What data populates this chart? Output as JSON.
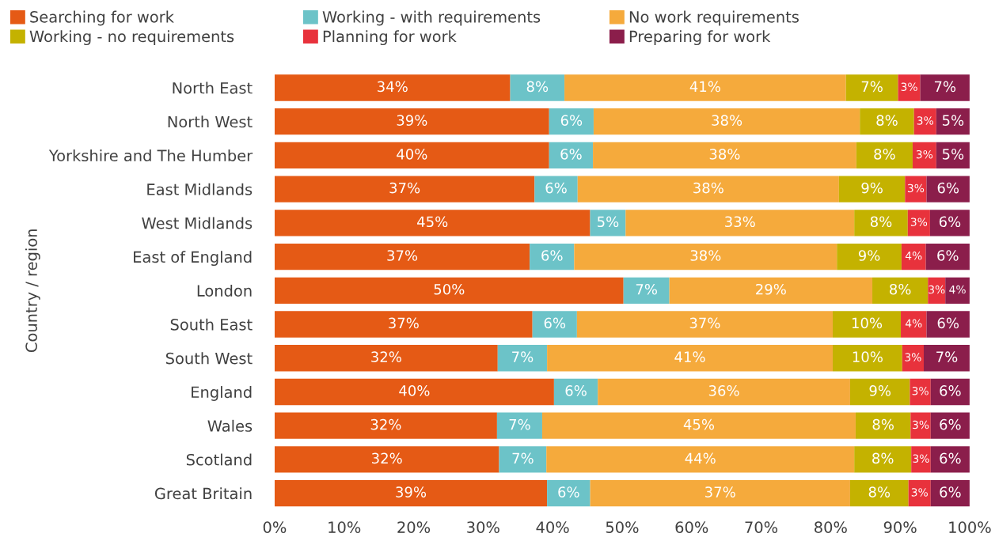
{
  "chart_data": {
    "type": "bar",
    "orientation": "horizontal",
    "stacked": true,
    "ylabel": "Country / region",
    "categories": [
      "North East",
      "North West",
      "Yorkshire and The Humber",
      "East Midlands",
      "West Midlands",
      "East of England",
      "London",
      "South East",
      "South West",
      "England",
      "Wales",
      "Scotland",
      "Great Britain"
    ],
    "series": [
      {
        "name": "Searching for work",
        "color": "#e55a15",
        "values": [
          33.9,
          39.5,
          39.5,
          37.4,
          45.4,
          36.7,
          50.2,
          37.1,
          32.1,
          40.2,
          32.0,
          32.3,
          39.2
        ],
        "value_labels": [
          "34%",
          "39%",
          "40%",
          "37%",
          "45%",
          "37%",
          "50%",
          "37%",
          "32%",
          "40%",
          "32%",
          "32%",
          "39%"
        ]
      },
      {
        "name": "Working - with requirements",
        "color": "#6cc3c8",
        "values": [
          7.8,
          6.4,
          6.3,
          6.2,
          5.1,
          6.4,
          6.6,
          6.4,
          7.1,
          6.3,
          6.5,
          6.8,
          6.2
        ],
        "value_labels": [
          "8%",
          "6%",
          "6%",
          "6%",
          "5%",
          "6%",
          "7%",
          "6%",
          "7%",
          "6%",
          "7%",
          "7%",
          "6%"
        ]
      },
      {
        "name": "No work requirements",
        "color": "#f5aa3c",
        "values": [
          40.5,
          38.3,
          37.9,
          37.6,
          32.9,
          37.8,
          29.2,
          36.8,
          41.1,
          36.3,
          45.1,
          44.3,
          37.4
        ],
        "value_labels": [
          "41%",
          "38%",
          "38%",
          "38%",
          "33%",
          "38%",
          "29%",
          "37%",
          "41%",
          "36%",
          "45%",
          "44%",
          "37%"
        ]
      },
      {
        "name": "Working - no requirements",
        "color": "#c4b200",
        "values": [
          7.5,
          7.8,
          8.1,
          9.5,
          7.7,
          9.3,
          8.0,
          9.8,
          10.0,
          8.6,
          7.9,
          8.2,
          8.4
        ],
        "value_labels": [
          "7%",
          "8%",
          "8%",
          "9%",
          "8%",
          "9%",
          "8%",
          "10%",
          "10%",
          "9%",
          "8%",
          "8%",
          "8%"
        ]
      },
      {
        "name": "Planning for work",
        "color": "#e8323c",
        "values": [
          3.2,
          3.2,
          3.4,
          3.1,
          3.2,
          3.5,
          2.5,
          3.7,
          3.1,
          3.0,
          2.9,
          2.8,
          3.2
        ],
        "value_labels": [
          "3%",
          "3%",
          "3%",
          "3%",
          "3%",
          "4%",
          "3%",
          "4%",
          "3%",
          "3%",
          "3%",
          "3%",
          "3%"
        ]
      },
      {
        "name": "Preparing for work",
        "color": "#8b1e4b",
        "values": [
          7.1,
          4.8,
          4.8,
          6.2,
          5.7,
          6.3,
          3.5,
          6.2,
          6.6,
          5.6,
          5.6,
          5.6,
          5.6
        ],
        "value_labels": [
          "7%",
          "5%",
          "5%",
          "6%",
          "6%",
          "6%",
          "4%",
          "6%",
          "7%",
          "6%",
          "6%",
          "6%",
          "6%"
        ]
      }
    ],
    "xlim": [
      0,
      100
    ],
    "xticks": [
      {
        "value": 0,
        "label": "0%"
      },
      {
        "value": 10,
        "label": "10%"
      },
      {
        "value": 20,
        "label": "20%"
      },
      {
        "value": 30,
        "label": "30%"
      },
      {
        "value": 40,
        "label": "40%"
      },
      {
        "value": 50,
        "label": "50%"
      },
      {
        "value": 60,
        "label": "60%"
      },
      {
        "value": 70,
        "label": "70%"
      },
      {
        "value": 80,
        "label": "80%"
      },
      {
        "value": 90,
        "label": "90%"
      },
      {
        "value": 100,
        "label": "100%"
      }
    ],
    "grid": false,
    "legend": "top"
  }
}
